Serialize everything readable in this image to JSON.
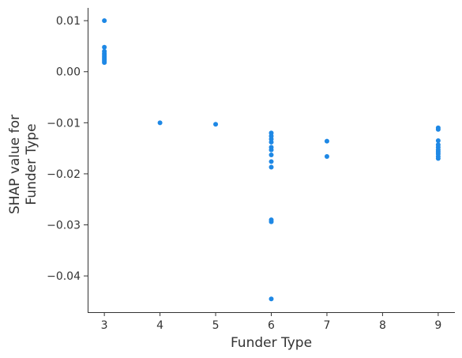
{
  "chart_data": {
    "type": "scatter",
    "xlabel": "Funder Type",
    "ylabel_lines": [
      "SHAP value for",
      "Funder Type"
    ],
    "xlim": [
      2.7,
      9.3
    ],
    "ylim": [
      -0.0471,
      0.0125
    ],
    "x_ticks": [
      3,
      4,
      5,
      6,
      7,
      8,
      9
    ],
    "y_ticks": [
      0.01,
      0.0,
      -0.01,
      -0.02,
      -0.03,
      -0.04
    ],
    "x_tick_labels": [
      "3",
      "4",
      "5",
      "6",
      "7",
      "8",
      "9"
    ],
    "y_tick_labels": [
      "0.01",
      "0.00",
      "−0.01",
      "−0.02",
      "−0.03",
      "−0.04"
    ],
    "grid": false,
    "point_color": "#1e88e5",
    "points": [
      {
        "x": 3,
        "y": 0.01
      },
      {
        "x": 3,
        "y": 0.0048
      },
      {
        "x": 3,
        "y": 0.004
      },
      {
        "x": 3,
        "y": 0.0036
      },
      {
        "x": 3,
        "y": 0.0033
      },
      {
        "x": 3,
        "y": 0.003
      },
      {
        "x": 3,
        "y": 0.0027
      },
      {
        "x": 3,
        "y": 0.0024
      },
      {
        "x": 3,
        "y": 0.0021
      },
      {
        "x": 3,
        "y": 0.0018
      },
      {
        "x": 4,
        "y": -0.01
      },
      {
        "x": 5,
        "y": -0.0103
      },
      {
        "x": 6,
        "y": -0.012
      },
      {
        "x": 6,
        "y": -0.0126
      },
      {
        "x": 6,
        "y": -0.0132
      },
      {
        "x": 6,
        "y": -0.0138
      },
      {
        "x": 6,
        "y": -0.0148
      },
      {
        "x": 6,
        "y": -0.0153
      },
      {
        "x": 6,
        "y": -0.0163
      },
      {
        "x": 6,
        "y": -0.0176
      },
      {
        "x": 6,
        "y": -0.0187
      },
      {
        "x": 6,
        "y": -0.029
      },
      {
        "x": 6,
        "y": -0.0294
      },
      {
        "x": 6,
        "y": -0.0445
      },
      {
        "x": 7,
        "y": -0.0136
      },
      {
        "x": 7,
        "y": -0.0166
      },
      {
        "x": 9,
        "y": -0.011
      },
      {
        "x": 9,
        "y": -0.0113
      },
      {
        "x": 9,
        "y": -0.0135
      },
      {
        "x": 9,
        "y": -0.0143
      },
      {
        "x": 9,
        "y": -0.0148
      },
      {
        "x": 9,
        "y": -0.0153
      },
      {
        "x": 9,
        "y": -0.0157
      },
      {
        "x": 9,
        "y": -0.0161
      },
      {
        "x": 9,
        "y": -0.0166
      },
      {
        "x": 9,
        "y": -0.017
      }
    ]
  }
}
